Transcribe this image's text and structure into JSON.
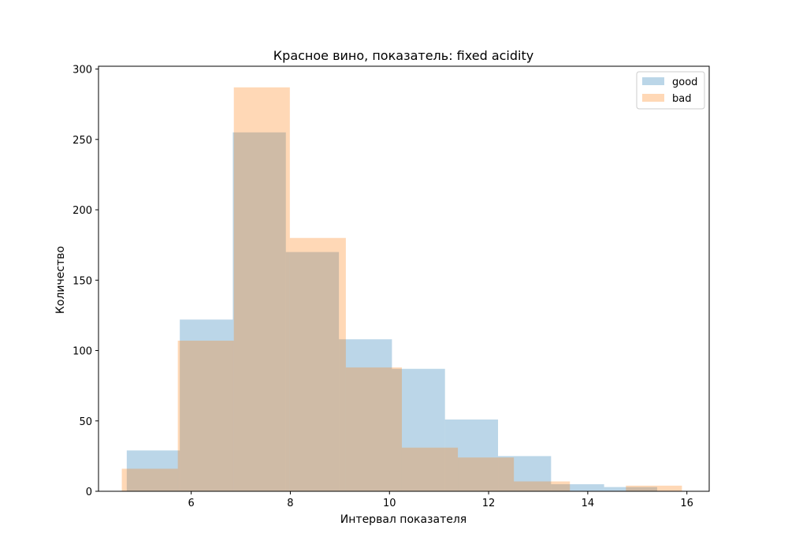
{
  "chart_data": {
    "type": "bar",
    "title": "Красное вино, показатель: fixed acidity",
    "xlabel": "Интервал показателя",
    "ylabel": "Количество",
    "xlim": [
      4.13,
      16.45
    ],
    "ylim": [
      0,
      302
    ],
    "xticks": [
      6,
      8,
      10,
      12,
      14,
      16
    ],
    "yticks": [
      0,
      50,
      100,
      150,
      200,
      250,
      300
    ],
    "grid": false,
    "legend_position": "top-right",
    "series": [
      {
        "name": "good",
        "color": "#1f77b4",
        "alpha": 0.3,
        "bins": [
          {
            "x0": 4.7,
            "x1": 5.77,
            "count": 29
          },
          {
            "x0": 5.77,
            "x1": 6.84,
            "count": 122
          },
          {
            "x0": 6.84,
            "x1": 7.91,
            "count": 255
          },
          {
            "x0": 7.91,
            "x1": 8.98,
            "count": 170
          },
          {
            "x0": 8.98,
            "x1": 10.05,
            "count": 108
          },
          {
            "x0": 10.05,
            "x1": 11.12,
            "count": 87
          },
          {
            "x0": 11.12,
            "x1": 12.19,
            "count": 51
          },
          {
            "x0": 12.19,
            "x1": 13.26,
            "count": 25
          },
          {
            "x0": 13.26,
            "x1": 14.33,
            "count": 5
          },
          {
            "x0": 14.33,
            "x1": 15.4,
            "count": 3
          }
        ]
      },
      {
        "name": "bad",
        "color": "#ff7f0e",
        "alpha": 0.3,
        "bins": [
          {
            "x0": 4.6,
            "x1": 5.73,
            "count": 16
          },
          {
            "x0": 5.73,
            "x1": 6.86,
            "count": 107
          },
          {
            "x0": 6.86,
            "x1": 7.99,
            "count": 287
          },
          {
            "x0": 7.99,
            "x1": 9.12,
            "count": 180
          },
          {
            "x0": 9.12,
            "x1": 10.25,
            "count": 88
          },
          {
            "x0": 10.25,
            "x1": 11.38,
            "count": 31
          },
          {
            "x0": 11.38,
            "x1": 12.51,
            "count": 24
          },
          {
            "x0": 12.51,
            "x1": 13.64,
            "count": 7
          },
          {
            "x0": 13.64,
            "x1": 14.77,
            "count": 0
          },
          {
            "x0": 14.77,
            "x1": 15.9,
            "count": 4
          }
        ]
      }
    ]
  }
}
